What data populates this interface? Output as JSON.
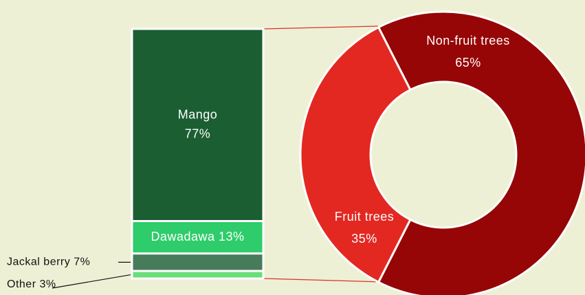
{
  "chart_data": [
    {
      "type": "donut",
      "categories": [
        "Non-fruit trees",
        "Fruit trees"
      ],
      "values": [
        65,
        35
      ],
      "value_labels": [
        "65%",
        "35%"
      ],
      "colors": [
        "#960606",
        "#e32822"
      ]
    },
    {
      "type": "stacked_bar",
      "categories": [
        "Mango",
        "Dawadawa",
        "Jackal berry",
        "Other"
      ],
      "values": [
        77,
        13,
        7,
        3
      ],
      "value_labels": [
        "77%",
        "13%",
        "7%",
        "3%"
      ],
      "colors": [
        "#1b5e32",
        "#2ecc6a",
        "#467c59",
        "#6ddc7b"
      ]
    }
  ]
}
